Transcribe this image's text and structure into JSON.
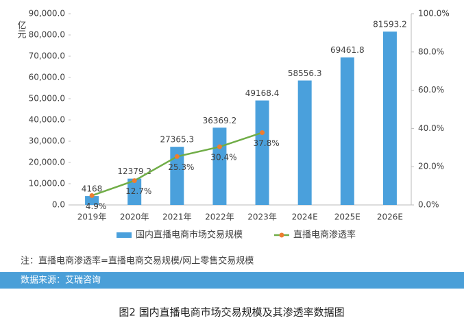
{
  "chart_data": {
    "type": "bar_line",
    "y_label": "亿元",
    "categories": [
      "2019年",
      "2020年",
      "2021年",
      "2022年",
      "2023年",
      "2024E",
      "2025E",
      "2026E"
    ],
    "series": [
      {
        "name": "国内直播电商市场交易规模",
        "type": "bar",
        "color": "#4aa0dc",
        "values": [
          4168,
          12379.2,
          27365.3,
          36369.2,
          49168.4,
          58556.3,
          69461.8,
          81593.2
        ]
      },
      {
        "name": "直播电商渗透率",
        "type": "line",
        "axis": "y2",
        "color": "#70ad47",
        "marker_color": "#ed7d31",
        "values": [
          4.9,
          12.7,
          25.3,
          30.4,
          37.8,
          null,
          null,
          null
        ],
        "value_labels": [
          "4.9%",
          "12.7%",
          "25.3%",
          "30.4%",
          "37.8%",
          null,
          null,
          null
        ]
      }
    ],
    "ylim": [
      0,
      90000
    ],
    "yticks": [
      {
        "value": 0,
        "label": "0.0"
      },
      {
        "value": 10000,
        "label": "10,000.0"
      },
      {
        "value": 20000,
        "label": "20,000.0"
      },
      {
        "value": 30000,
        "label": "30,000.0"
      },
      {
        "value": 40000,
        "label": "40,000.0"
      },
      {
        "value": 50000,
        "label": "50,000.0"
      },
      {
        "value": 60000,
        "label": "60,000.0"
      },
      {
        "value": 70000,
        "label": "70,000.0"
      },
      {
        "value": 80000,
        "label": "80,000.0"
      },
      {
        "value": 90000,
        "label": "90,000.0"
      }
    ],
    "y2lim": [
      0,
      100
    ],
    "y2ticks": [
      {
        "value": 0,
        "label": "0.0%"
      },
      {
        "value": 20,
        "label": "20.0%"
      },
      {
        "value": 40,
        "label": "40.0%"
      },
      {
        "value": 60,
        "label": "60.0%"
      },
      {
        "value": 80,
        "label": "80.0%"
      },
      {
        "value": 100,
        "label": "100.0%"
      }
    ],
    "legend": "bottom",
    "note": "注：直播电商渗透率=直播电商交易规模/网上零售交易规模",
    "source": "数据来源：艾瑞咨询",
    "caption": "图2 国内直播电商市场交易规模及其渗透率数据图"
  }
}
